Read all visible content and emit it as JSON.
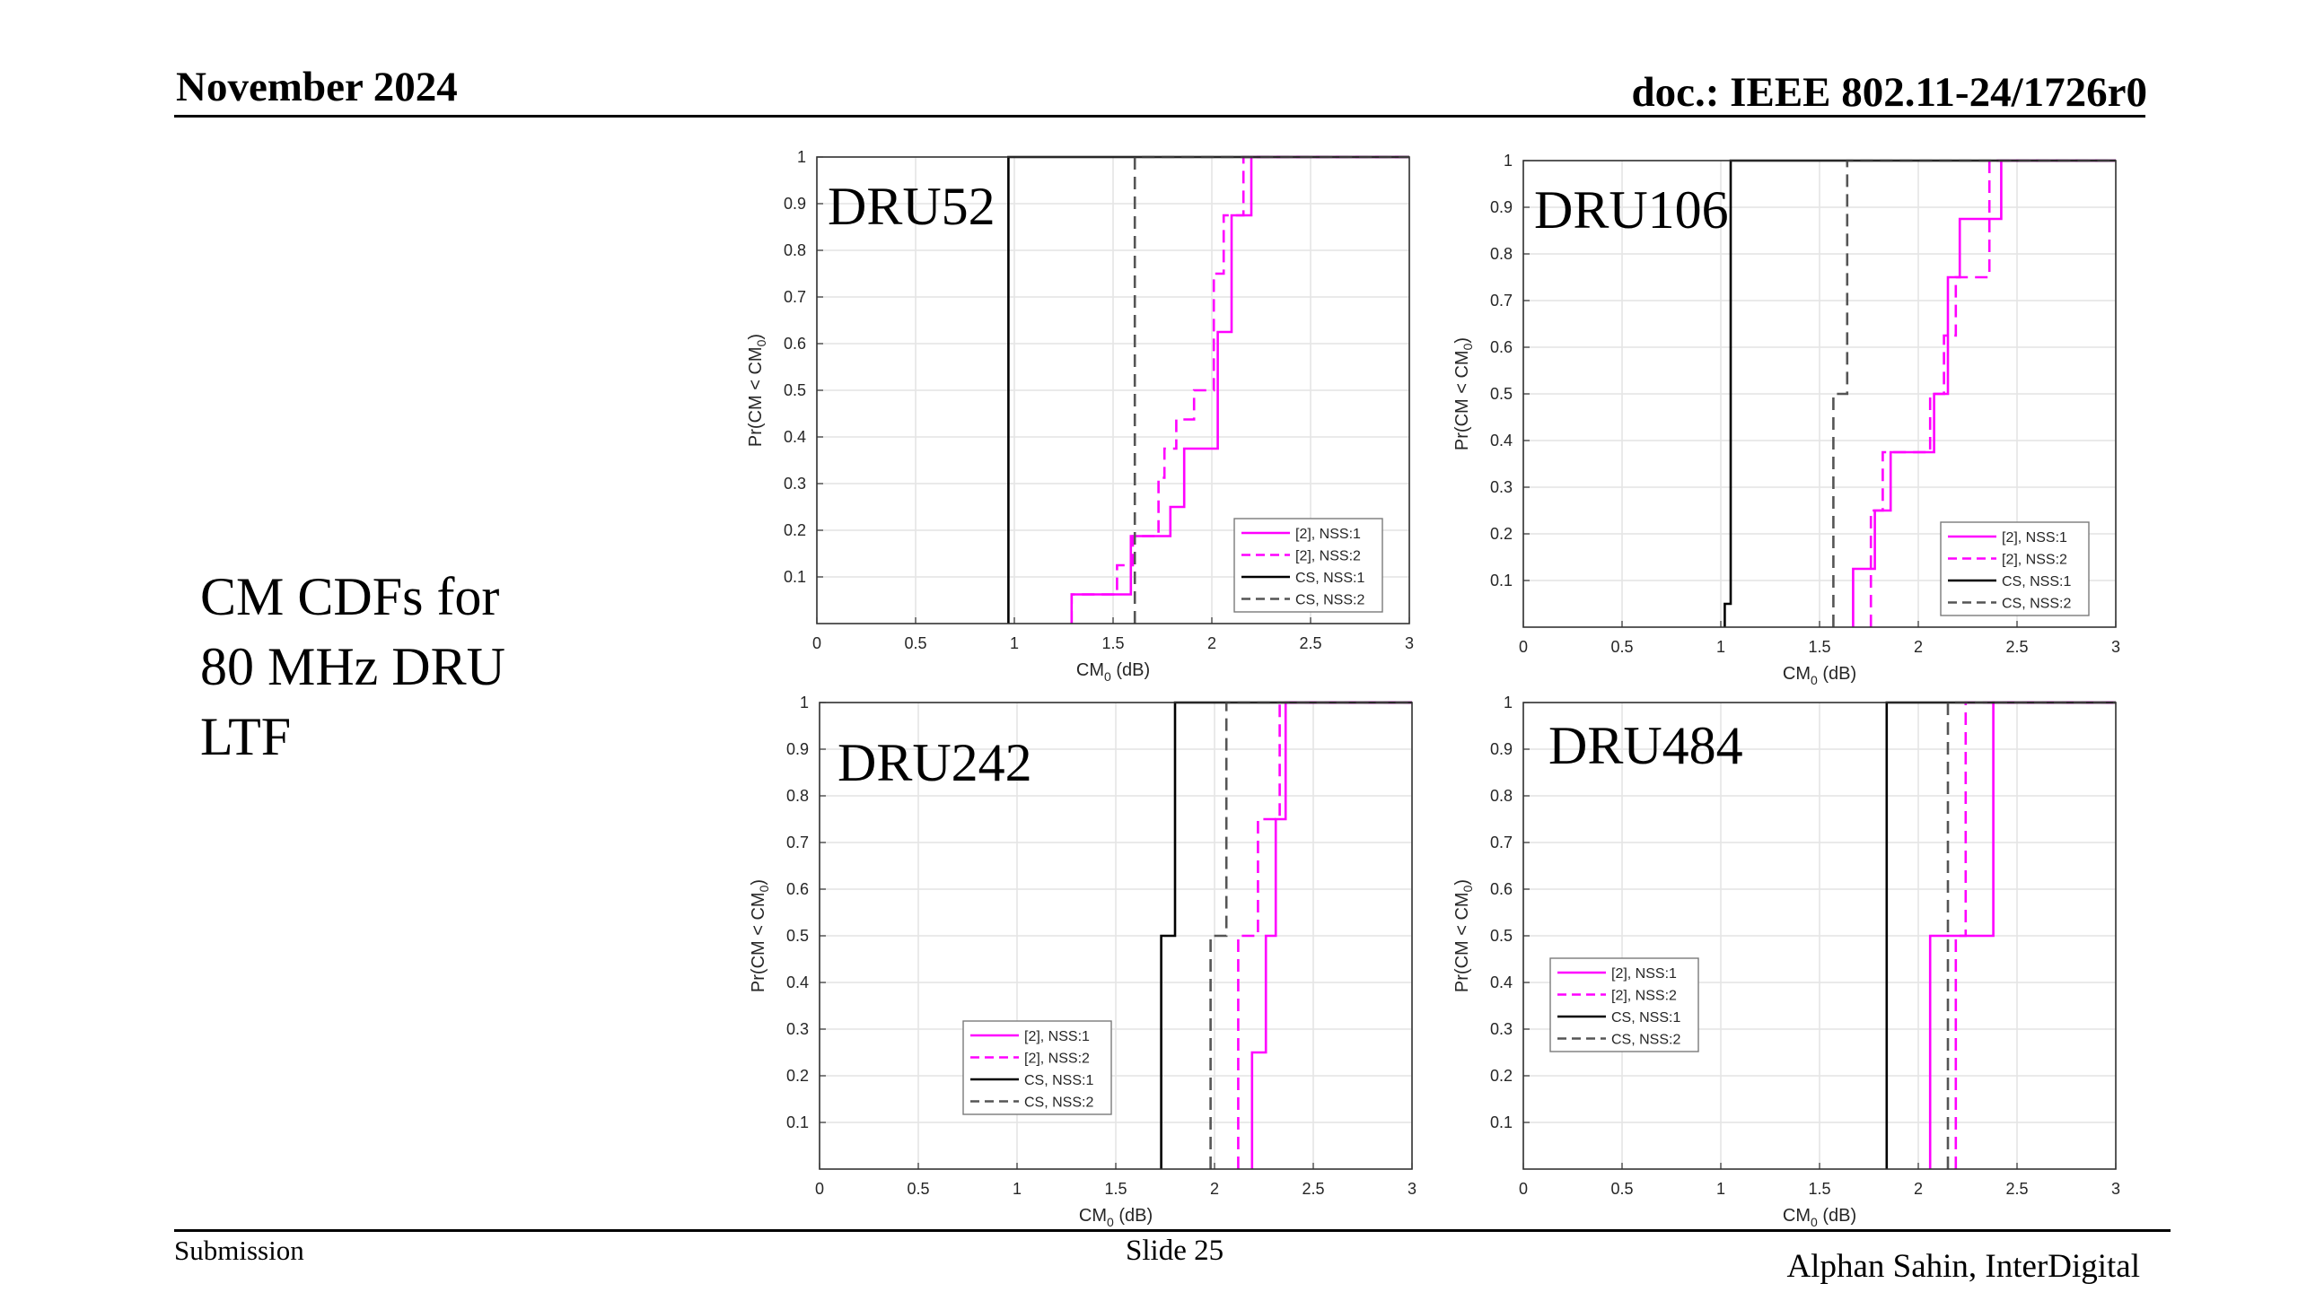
{
  "header": {
    "date": "November 2024",
    "doc": "doc.: IEEE 802.11-24/1726r0"
  },
  "title_lines": [
    "CM CDFs for",
    "80 MHz DRU",
    "LTF"
  ],
  "footer": {
    "submission": "Submission",
    "slide": "Slide 25",
    "author": "Alphan Sahin, InterDigital"
  },
  "colors": {
    "magenta": "#ff00ff",
    "black": "#000000",
    "cs_nss2": "#555555"
  },
  "chart_data": [
    {
      "type": "line",
      "label": "DRU52",
      "xlabel": "CM",
      "xlabel_sub": "0",
      "xlabel_unit": " (dB)",
      "ylabel": "Pr(CM < CM",
      "ylabel_sub": "0",
      "ylabel_end": ")",
      "xlim": [
        0,
        3
      ],
      "ylim": [
        0,
        1
      ],
      "xticks": [
        "0",
        "0.5",
        "1",
        "1.5",
        "2",
        "2.5",
        "3"
      ],
      "yticks": [
        "0.1",
        "0.2",
        "0.3",
        "0.4",
        "0.5",
        "0.6",
        "0.7",
        "0.8",
        "0.9",
        "1"
      ],
      "grid": true,
      "legend_position": "bottom-right",
      "series": [
        {
          "name": "[2], NSS:1",
          "color": "#ff00ff",
          "dash": "solid",
          "x": [
            1.29,
            1.29,
            1.31,
            1.31,
            1.59,
            1.59,
            1.79,
            1.79,
            1.86,
            1.86,
            1.91,
            1.91,
            2.03,
            2.03,
            2.1,
            2.1,
            2.2,
            2.2,
            3
          ],
          "y": [
            0,
            0.0625,
            0.0625,
            0.0625,
            0.0625,
            0.1875,
            0.1875,
            0.25,
            0.25,
            0.375,
            0.375,
            0.375,
            0.375,
            0.625,
            0.625,
            0.875,
            0.875,
            1,
            1
          ]
        },
        {
          "name": "[2], NSS:2",
          "color": "#ff00ff",
          "dash": "dashed",
          "x": [
            1.29,
            1.29,
            1.52,
            1.52,
            1.6,
            1.6,
            1.73,
            1.73,
            1.76,
            1.76,
            1.82,
            1.82,
            1.91,
            1.91,
            2.01,
            2.01,
            2.06,
            2.06,
            2.16,
            2.16,
            3
          ],
          "y": [
            0,
            0.0625,
            0.0625,
            0.125,
            0.125,
            0.1875,
            0.1875,
            0.3125,
            0.3125,
            0.375,
            0.375,
            0.4375,
            0.4375,
            0.5,
            0.5,
            0.75,
            0.75,
            0.875,
            0.875,
            1,
            1
          ]
        },
        {
          "name": "CS, NSS:1",
          "color": "#000000",
          "dash": "solid",
          "x": [
            0.97,
            0.97,
            3
          ],
          "y": [
            0,
            1,
            1
          ]
        },
        {
          "name": "CS, NSS:2",
          "color": "#555555",
          "dash": "dashed",
          "x": [
            1.61,
            1.61,
            3
          ],
          "y": [
            0,
            1,
            1
          ]
        }
      ]
    },
    {
      "type": "line",
      "label": "DRU106",
      "xlabel": "CM",
      "xlabel_sub": "0",
      "xlabel_unit": " (dB)",
      "ylabel": "Pr(CM < CM",
      "ylabel_sub": "0",
      "ylabel_end": ")",
      "xlim": [
        0,
        3
      ],
      "ylim": [
        0,
        1
      ],
      "xticks": [
        "0",
        "0.5",
        "1",
        "1.5",
        "2",
        "2.5",
        "3"
      ],
      "yticks": [
        "0.1",
        "0.2",
        "0.3",
        "0.4",
        "0.5",
        "0.6",
        "0.7",
        "0.8",
        "0.9",
        "1"
      ],
      "grid": true,
      "legend_position": "bottom-right",
      "series": [
        {
          "name": "[2], NSS:1",
          "color": "#ff00ff",
          "dash": "solid",
          "x": [
            1.67,
            1.67,
            1.78,
            1.78,
            1.86,
            1.86,
            2.08,
            2.08,
            2.15,
            2.15,
            2.21,
            2.21,
            2.42,
            2.42,
            3
          ],
          "y": [
            0,
            0.125,
            0.125,
            0.25,
            0.25,
            0.375,
            0.375,
            0.5,
            0.5,
            0.75,
            0.75,
            0.875,
            0.875,
            1,
            1
          ]
        },
        {
          "name": "[2], NSS:2",
          "color": "#ff00ff",
          "dash": "dashed",
          "x": [
            1.76,
            1.76,
            1.82,
            1.82,
            2.06,
            2.06,
            2.13,
            2.13,
            2.19,
            2.19,
            2.36,
            2.36,
            3
          ],
          "y": [
            0,
            0.25,
            0.25,
            0.375,
            0.375,
            0.5,
            0.5,
            0.625,
            0.625,
            0.75,
            0.75,
            1,
            1
          ]
        },
        {
          "name": "CS, NSS:1",
          "color": "#000000",
          "dash": "solid",
          "x": [
            1.02,
            1.02,
            1.05,
            1.05,
            3
          ],
          "y": [
            0,
            0.05,
            0.05,
            1,
            1
          ]
        },
        {
          "name": "CS, NSS:2",
          "color": "#555555",
          "dash": "dashed",
          "x": [
            1.57,
            1.57,
            1.64,
            1.64,
            3
          ],
          "y": [
            0,
            0.5,
            0.5,
            1,
            1
          ]
        }
      ]
    },
    {
      "type": "line",
      "label": "DRU242",
      "xlabel": "CM",
      "xlabel_sub": "0",
      "xlabel_unit": " (dB)",
      "ylabel": "Pr(CM < CM",
      "ylabel_sub": "0",
      "ylabel_end": ")",
      "xlim": [
        0,
        3
      ],
      "ylim": [
        0,
        1
      ],
      "xticks": [
        "0",
        "0.5",
        "1",
        "1.5",
        "2",
        "2.5",
        "3"
      ],
      "yticks": [
        "0.1",
        "0.2",
        "0.3",
        "0.4",
        "0.5",
        "0.6",
        "0.7",
        "0.8",
        "0.9",
        "1"
      ],
      "grid": true,
      "legend_position": "bottom-left",
      "series": [
        {
          "name": "[2], NSS:1",
          "color": "#ff00ff",
          "dash": "solid",
          "x": [
            2.19,
            2.19,
            2.26,
            2.26,
            2.31,
            2.31,
            2.36,
            2.36,
            3
          ],
          "y": [
            0,
            0.25,
            0.25,
            0.5,
            0.5,
            0.75,
            0.75,
            1,
            1
          ]
        },
        {
          "name": "[2], NSS:2",
          "color": "#ff00ff",
          "dash": "dashed",
          "x": [
            2.12,
            2.12,
            2.16,
            2.16,
            2.22,
            2.22,
            2.33,
            2.33,
            3
          ],
          "y": [
            0,
            0.5,
            0.5,
            0.5,
            0.5,
            0.75,
            0.75,
            1,
            1
          ]
        },
        {
          "name": "CS, NSS:1",
          "color": "#000000",
          "dash": "solid",
          "x": [
            1.73,
            1.73,
            1.8,
            1.8,
            3
          ],
          "y": [
            0,
            0.5,
            0.5,
            1,
            1
          ]
        },
        {
          "name": "CS, NSS:2",
          "color": "#555555",
          "dash": "dashed",
          "x": [
            1.98,
            1.98,
            2.06,
            2.06,
            3
          ],
          "y": [
            0,
            0.5,
            0.5,
            1,
            1
          ]
        }
      ]
    },
    {
      "type": "line",
      "label": "DRU484",
      "xlabel": "CM",
      "xlabel_sub": "0",
      "xlabel_unit": " (dB)",
      "ylabel": "Pr(CM < CM",
      "ylabel_sub": "0",
      "ylabel_end": ")",
      "xlim": [
        0,
        3
      ],
      "ylim": [
        0,
        1
      ],
      "xticks": [
        "0",
        "0.5",
        "1",
        "1.5",
        "2",
        "2.5",
        "3"
      ],
      "yticks": [
        "0.1",
        "0.2",
        "0.3",
        "0.4",
        "0.5",
        "0.6",
        "0.7",
        "0.8",
        "0.9",
        "1"
      ],
      "grid": true,
      "legend_position": "middle-left",
      "series": [
        {
          "name": "[2], NSS:1",
          "color": "#ff00ff",
          "dash": "solid",
          "x": [
            2.06,
            2.06,
            2.38,
            2.38,
            3
          ],
          "y": [
            0,
            0.5,
            0.5,
            1,
            1
          ]
        },
        {
          "name": "[2], NSS:2",
          "color": "#ff00ff",
          "dash": "dashed",
          "x": [
            2.19,
            2.19,
            2.24,
            2.24,
            3
          ],
          "y": [
            0,
            0.5,
            0.5,
            1,
            1
          ]
        },
        {
          "name": "CS, NSS:1",
          "color": "#000000",
          "dash": "solid",
          "x": [
            1.84,
            1.84,
            3
          ],
          "y": [
            0,
            1,
            1
          ]
        },
        {
          "name": "CS, NSS:2",
          "color": "#555555",
          "dash": "dashed",
          "x": [
            2.15,
            2.15,
            3
          ],
          "y": [
            0,
            1,
            1
          ]
        }
      ]
    }
  ]
}
